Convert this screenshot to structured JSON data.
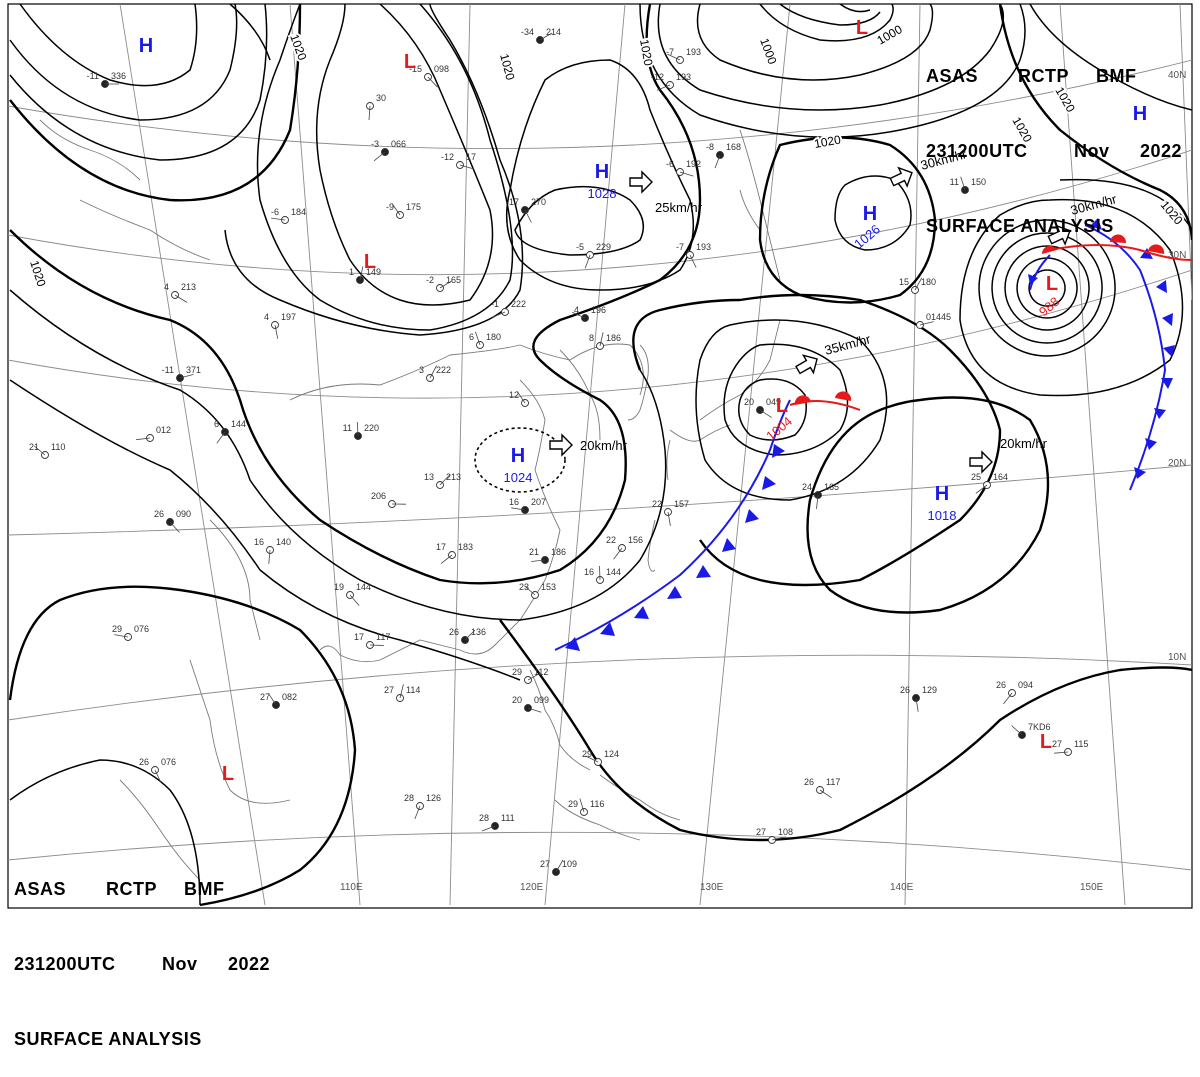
{
  "header": {
    "agency": "ASAS",
    "station": "RCTP",
    "center": "BMF",
    "time": "231200UTC",
    "month": "Nov",
    "year": "2022",
    "product": "SURFACE ANALYSIS"
  },
  "longitude_labels": [
    "110E",
    "120E",
    "130E",
    "140E",
    "150E"
  ],
  "latitude_labels": [
    "40N",
    "30N",
    "20N",
    "10N"
  ],
  "isobar_labels": [
    "1020",
    "1020",
    "1020",
    "1020",
    "1000",
    "1000",
    "1020",
    "1020",
    "1020",
    "1020"
  ],
  "pressure_centers": [
    {
      "type": "H",
      "value": ""
    },
    {
      "type": "L",
      "value": ""
    },
    {
      "type": "L",
      "value": ""
    },
    {
      "type": "H",
      "value": "1028"
    },
    {
      "type": "H",
      "value": "1024"
    },
    {
      "type": "H",
      "value": "1026"
    },
    {
      "type": "L",
      "value": "988"
    },
    {
      "type": "L",
      "value": "1004"
    },
    {
      "type": "H",
      "value": "1018"
    },
    {
      "type": "H",
      "value": ""
    },
    {
      "type": "L",
      "value": ""
    },
    {
      "type": "L",
      "value": ""
    },
    {
      "type": "L",
      "value": ""
    }
  ],
  "motions": [
    {
      "label": "25km/hr"
    },
    {
      "label": "20km/hr"
    },
    {
      "label": "30km/hr"
    },
    {
      "label": "30km/hr"
    },
    {
      "label": "35km/hr"
    },
    {
      "label": "20km/hr"
    }
  ],
  "stations": [
    {
      "t": "-11",
      "p": "336"
    },
    {
      "t": "-15",
      "p": "098"
    },
    {
      "t": "",
      "p": "30"
    },
    {
      "t": "-3",
      "p": "066"
    },
    {
      "t": "-6",
      "p": "184"
    },
    {
      "t": "-9",
      "p": "175"
    },
    {
      "t": "1",
      "p": "149"
    },
    {
      "t": "-2",
      "p": "165"
    },
    {
      "t": "-12",
      "p": "17"
    },
    {
      "t": "-17",
      "p": "270"
    },
    {
      "t": "-5",
      "p": "229"
    },
    {
      "t": "-1",
      "p": "222"
    },
    {
      "t": "4",
      "p": "196"
    },
    {
      "t": "6",
      "p": "180"
    },
    {
      "t": "3",
      "p": "222"
    },
    {
      "t": "-11",
      "p": "371"
    },
    {
      "t": "4",
      "p": "213"
    },
    {
      "t": "4",
      "p": "197"
    },
    {
      "t": "6",
      "p": "144"
    },
    {
      "t": "",
      "p": "012"
    },
    {
      "t": "21",
      "p": "110"
    },
    {
      "t": "11",
      "p": "220"
    },
    {
      "t": "13",
      "p": "213"
    },
    {
      "t": "206",
      "p": ""
    },
    {
      "t": "26",
      "p": "090"
    },
    {
      "t": "16",
      "p": "140"
    },
    {
      "t": "17",
      "p": "183"
    },
    {
      "t": "16",
      "p": "207"
    },
    {
      "t": "12",
      "p": ""
    },
    {
      "t": "8",
      "p": "186"
    },
    {
      "t": "-34",
      "p": "214"
    },
    {
      "t": "-6",
      "p": "192"
    },
    {
      "t": "-7",
      "p": "193"
    },
    {
      "t": "-8",
      "p": "168"
    },
    {
      "t": "-12",
      "p": "193"
    },
    {
      "t": "-7",
      "p": "193"
    },
    {
      "t": "11",
      "p": "150"
    },
    {
      "t": "15",
      "p": "180"
    },
    {
      "t": "",
      "p": "01445"
    },
    {
      "t": "20",
      "p": "049"
    },
    {
      "t": "22",
      "p": "157"
    },
    {
      "t": "22",
      "p": "156"
    },
    {
      "t": "21",
      "p": "186"
    },
    {
      "t": "23",
      "p": "153"
    },
    {
      "t": "16",
      "p": "144"
    },
    {
      "t": "26",
      "p": "136"
    },
    {
      "t": "17",
      "p": "117"
    },
    {
      "t": "19",
      "p": "144"
    },
    {
      "t": "24",
      "p": "165"
    },
    {
      "t": "25",
      "p": "164"
    },
    {
      "t": "29",
      "p": "076"
    },
    {
      "t": "27",
      "p": "082"
    },
    {
      "t": "27",
      "p": "114"
    },
    {
      "t": "29",
      "p": "112"
    },
    {
      "t": "20",
      "p": "099"
    },
    {
      "t": "26",
      "p": "076"
    },
    {
      "t": "28",
      "p": "126"
    },
    {
      "t": "28",
      "p": "111"
    },
    {
      "t": "29",
      "p": "124"
    },
    {
      "t": "29",
      "p": "116"
    },
    {
      "t": "27",
      "p": "109"
    },
    {
      "t": "27",
      "p": "108"
    },
    {
      "t": "26",
      "p": "117"
    },
    {
      "t": "26",
      "p": "129"
    },
    {
      "t": "26",
      "p": "094"
    },
    {
      "t": "27",
      "p": "115"
    },
    {
      "t": "",
      "p": "7KD6"
    }
  ],
  "colors": {
    "high": "#1a1ae6",
    "low": "#e61a1a",
    "isobar": "#000000",
    "coast": "#7a7a7a",
    "grid": "#8c8c8c",
    "cold_front": "#1a1ae6",
    "warm_front": "#e61a1a"
  }
}
